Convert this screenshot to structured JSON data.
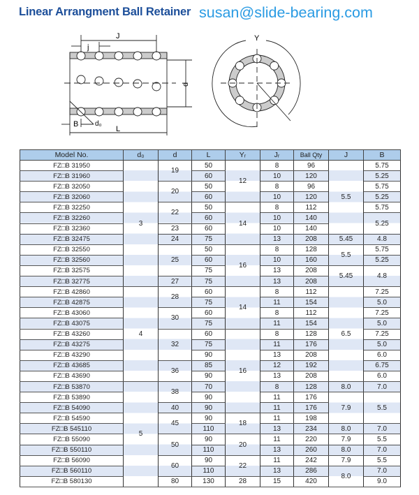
{
  "header": {
    "title": "Linear Arrangment Ball Retainer",
    "email": "susan@slide-bearing.com"
  },
  "diagram": {
    "labels": {
      "J": "J",
      "j": "j",
      "d": "d",
      "B": "B",
      "d0": "d₀",
      "L": "L",
      "Y": "Y"
    }
  },
  "table": {
    "headers": [
      "Model No.",
      "d₀",
      "d",
      "L",
      "Yᵣ",
      "Jᵣ",
      "Ball Qty",
      "J",
      "B"
    ],
    "model": [
      "FZ□B 31950",
      "FZ□B 31960",
      "FZ□B 32050",
      "FZ□B 32060",
      "FZ□B 32250",
      "FZ□B 32260",
      "FZ□B 32360",
      "FZ□B 32475",
      "FZ□B 32550",
      "FZ□B 32560",
      "FZ□B 32575",
      "FZ□B 32775",
      "FZ□B 42860",
      "FZ□B 42875",
      "FZ□B 43060",
      "FZ□B 43075",
      "FZ□B 43260",
      "FZ□B 43275",
      "FZ□B 43290",
      "FZ□B 43685",
      "FZ□B 43690",
      "FZ□B 53870",
      "FZ□B 53890",
      "FZ□B 54090",
      "FZ□B 54590",
      "FZ□B 545110",
      "FZ□B 55090",
      "FZ□B 550110",
      "FZ□B 56090",
      "FZ□B 560110",
      "FZ□B 580130"
    ],
    "d0": [
      {
        "v": "3",
        "span": 12
      },
      {
        "v": "4",
        "span": 9
      },
      {
        "v": "5",
        "span": 10
      }
    ],
    "d": [
      {
        "v": "19",
        "span": 2
      },
      {
        "v": "20",
        "span": 2
      },
      {
        "v": "22",
        "span": 2
      },
      {
        "v": "23",
        "span": 1
      },
      {
        "v": "24",
        "span": 1
      },
      {
        "v": "25",
        "span": 3
      },
      {
        "v": "27",
        "span": 1
      },
      {
        "v": "28",
        "span": 2
      },
      {
        "v": "30",
        "span": 2
      },
      {
        "v": "32",
        "span": 3
      },
      {
        "v": "36",
        "span": 2
      },
      {
        "v": "38",
        "span": 2
      },
      {
        "v": "40",
        "span": 1
      },
      {
        "v": "45",
        "span": 2
      },
      {
        "v": "50",
        "span": 2
      },
      {
        "v": "60",
        "span": 2
      },
      {
        "v": "80",
        "span": 1
      }
    ],
    "L": [
      "50",
      "60",
      "50",
      "60",
      "50",
      "60",
      "60",
      "75",
      "50",
      "60",
      "75",
      "75",
      "60",
      "75",
      "60",
      "75",
      "60",
      "75",
      "90",
      "85",
      "90",
      "70",
      "90",
      "90",
      "90",
      "110",
      "90",
      "110",
      "90",
      "110",
      "130"
    ],
    "Yr": [
      {
        "v": "12",
        "span": 4
      },
      {
        "v": "14",
        "span": 4
      },
      {
        "v": "16",
        "span": 4
      },
      {
        "v": "14",
        "span": 4
      },
      {
        "v": "16",
        "span": 8
      },
      {
        "v": "18",
        "span": 2
      },
      {
        "v": "20",
        "span": 2
      },
      {
        "v": "22",
        "span": 2
      },
      {
        "v": "28",
        "span": 1
      }
    ],
    "Jr": [
      "8",
      "10",
      "8",
      "10",
      "8",
      "10",
      "10",
      "13",
      "8",
      "10",
      "13",
      "13",
      "8",
      "11",
      "8",
      "11",
      "8",
      "11",
      "13",
      "12",
      "13",
      "8",
      "11",
      "11",
      "11",
      "13",
      "11",
      "13",
      "11",
      "13",
      "15"
    ],
    "qty": [
      "96",
      "120",
      "96",
      "120",
      "112",
      "140",
      "140",
      "208",
      "128",
      "160",
      "208",
      "208",
      "112",
      "154",
      "112",
      "154",
      "128",
      "176",
      "208",
      "192",
      "208",
      "128",
      "176",
      "176",
      "198",
      "234",
      "220",
      "260",
      "242",
      "286",
      "420"
    ],
    "J": [
      {
        "v": "5.5",
        "span": 7
      },
      {
        "v": "5.45",
        "span": 1
      },
      {
        "v": "5.5",
        "span": 2
      },
      {
        "v": "5.45",
        "span": 2
      },
      {
        "v": "6.5",
        "span": 9
      },
      {
        "v": "8.0",
        "span": 1
      },
      {
        "v": "7.9",
        "span": 3
      },
      {
        "v": "8.0",
        "span": 1
      },
      {
        "v": "7.9",
        "span": 1
      },
      {
        "v": "8.0",
        "span": 1
      },
      {
        "v": "7.9",
        "span": 1
      },
      {
        "v": "8.0",
        "span": 2
      }
    ],
    "B": [
      {
        "v": "5.75",
        "span": 1
      },
      {
        "v": "5.25",
        "span": 1
      },
      {
        "v": "5.75",
        "span": 1
      },
      {
        "v": "5.25",
        "span": 1
      },
      {
        "v": "5.75",
        "span": 1
      },
      {
        "v": "5.25",
        "span": 2
      },
      {
        "v": "4.8",
        "span": 1
      },
      {
        "v": "5.75",
        "span": 1
      },
      {
        "v": "5.25",
        "span": 1
      },
      {
        "v": "4.8",
        "span": 2
      },
      {
        "v": "7.25",
        "span": 1
      },
      {
        "v": "5.0",
        "span": 1
      },
      {
        "v": "7.25",
        "span": 1
      },
      {
        "v": "5.0",
        "span": 1
      },
      {
        "v": "7.25",
        "span": 1
      },
      {
        "v": "5.0",
        "span": 1
      },
      {
        "v": "6.0",
        "span": 1
      },
      {
        "v": "6.75",
        "span": 1
      },
      {
        "v": "6.0",
        "span": 1
      },
      {
        "v": "7.0",
        "span": 1
      },
      {
        "v": "5.5",
        "span": 3
      },
      {
        "v": "7.0",
        "span": 1
      },
      {
        "v": "5.5",
        "span": 1
      },
      {
        "v": "7.0",
        "span": 1
      },
      {
        "v": "5.5",
        "span": 1
      },
      {
        "v": "7.0",
        "span": 1
      },
      {
        "v": "9.0",
        "span": 1
      }
    ]
  },
  "colors": {
    "title": "#1d4f9a",
    "email": "#2a9be3",
    "header_bg": "#aecdeb",
    "stripe": "#dfe7f5"
  }
}
